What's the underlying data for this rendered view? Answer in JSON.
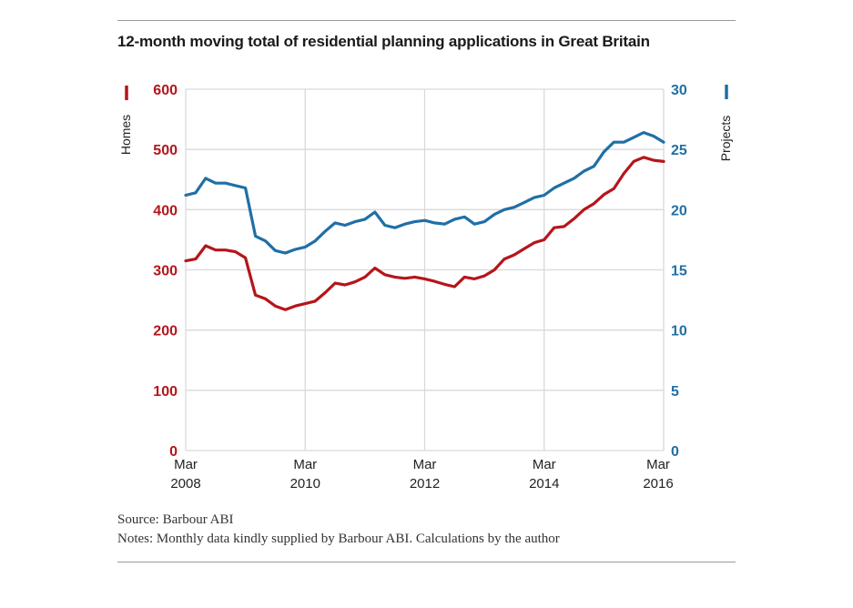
{
  "chart_data": {
    "type": "line",
    "title": "12-month moving total of residential planning applications in Great Britain",
    "x_range": [
      "2008-03",
      "2016-03"
    ],
    "x_ticks": [
      {
        "month": "Mar",
        "year": "2008",
        "date": "2008-03"
      },
      {
        "month": "Mar",
        "year": "2010",
        "date": "2010-03"
      },
      {
        "month": "Mar",
        "year": "2012",
        "date": "2012-03"
      },
      {
        "month": "Mar",
        "year": "2014",
        "date": "2014-03"
      },
      {
        "month": "Mar",
        "year": "2016",
        "date": "2016-03"
      }
    ],
    "y_left": {
      "label": "Homes",
      "ylim": [
        0,
        600
      ],
      "ticks": [
        "0",
        "100",
        "200",
        "300",
        "400",
        "500",
        "600"
      ]
    },
    "y_right": {
      "label": "Projects",
      "ylim": [
        0,
        30
      ],
      "ticks": [
        "0",
        "5",
        "10",
        "15",
        "20",
        "25",
        "30"
      ]
    },
    "grid": true,
    "legend": "axis-markers",
    "series": [
      {
        "name": "Homes",
        "axis": "left",
        "color": "#b5151b",
        "points": [
          [
            "2008-03",
            315
          ],
          [
            "2008-05",
            318
          ],
          [
            "2008-07",
            340
          ],
          [
            "2008-09",
            333
          ],
          [
            "2008-11",
            333
          ],
          [
            "2009-01",
            330
          ],
          [
            "2009-03",
            320
          ],
          [
            "2009-05",
            258
          ],
          [
            "2009-07",
            252
          ],
          [
            "2009-09",
            240
          ],
          [
            "2009-11",
            234
          ],
          [
            "2010-01",
            240
          ],
          [
            "2010-03",
            244
          ],
          [
            "2010-05",
            248
          ],
          [
            "2010-07",
            262
          ],
          [
            "2010-09",
            278
          ],
          [
            "2010-11",
            275
          ],
          [
            "2011-01",
            280
          ],
          [
            "2011-03",
            288
          ],
          [
            "2011-05",
            303
          ],
          [
            "2011-07",
            292
          ],
          [
            "2011-09",
            288
          ],
          [
            "2011-11",
            286
          ],
          [
            "2012-01",
            288
          ],
          [
            "2012-03",
            285
          ],
          [
            "2012-05",
            281
          ],
          [
            "2012-07",
            276
          ],
          [
            "2012-09",
            272
          ],
          [
            "2012-11",
            288
          ],
          [
            "2013-01",
            285
          ],
          [
            "2013-03",
            290
          ],
          [
            "2013-05",
            300
          ],
          [
            "2013-07",
            318
          ],
          [
            "2013-09",
            325
          ],
          [
            "2013-11",
            335
          ],
          [
            "2014-01",
            345
          ],
          [
            "2014-03",
            350
          ],
          [
            "2014-05",
            370
          ],
          [
            "2014-07",
            372
          ],
          [
            "2014-09",
            385
          ],
          [
            "2014-11",
            400
          ],
          [
            "2015-01",
            410
          ],
          [
            "2015-03",
            425
          ],
          [
            "2015-05",
            435
          ],
          [
            "2015-07",
            460
          ],
          [
            "2015-09",
            480
          ],
          [
            "2015-11",
            487
          ],
          [
            "2016-01",
            482
          ],
          [
            "2016-03",
            480
          ]
        ]
      },
      {
        "name": "Projects",
        "axis": "right",
        "color": "#1f6fa6",
        "points": [
          [
            "2008-03",
            21.2
          ],
          [
            "2008-05",
            21.4
          ],
          [
            "2008-07",
            22.6
          ],
          [
            "2008-09",
            22.2
          ],
          [
            "2008-11",
            22.2
          ],
          [
            "2009-01",
            22.0
          ],
          [
            "2009-03",
            21.8
          ],
          [
            "2009-05",
            17.8
          ],
          [
            "2009-07",
            17.4
          ],
          [
            "2009-09",
            16.6
          ],
          [
            "2009-11",
            16.4
          ],
          [
            "2010-01",
            16.7
          ],
          [
            "2010-03",
            16.9
          ],
          [
            "2010-05",
            17.4
          ],
          [
            "2010-07",
            18.2
          ],
          [
            "2010-09",
            18.9
          ],
          [
            "2010-11",
            18.7
          ],
          [
            "2011-01",
            19.0
          ],
          [
            "2011-03",
            19.2
          ],
          [
            "2011-05",
            19.8
          ],
          [
            "2011-07",
            18.7
          ],
          [
            "2011-09",
            18.5
          ],
          [
            "2011-11",
            18.8
          ],
          [
            "2012-01",
            19.0
          ],
          [
            "2012-03",
            19.1
          ],
          [
            "2012-05",
            18.9
          ],
          [
            "2012-07",
            18.8
          ],
          [
            "2012-09",
            19.2
          ],
          [
            "2012-11",
            19.4
          ],
          [
            "2013-01",
            18.8
          ],
          [
            "2013-03",
            19.0
          ],
          [
            "2013-05",
            19.6
          ],
          [
            "2013-07",
            20.0
          ],
          [
            "2013-09",
            20.2
          ],
          [
            "2013-11",
            20.6
          ],
          [
            "2014-01",
            21.0
          ],
          [
            "2014-03",
            21.2
          ],
          [
            "2014-05",
            21.8
          ],
          [
            "2014-07",
            22.2
          ],
          [
            "2014-09",
            22.6
          ],
          [
            "2014-11",
            23.2
          ],
          [
            "2015-01",
            23.6
          ],
          [
            "2015-03",
            24.8
          ],
          [
            "2015-05",
            25.6
          ],
          [
            "2015-07",
            25.6
          ],
          [
            "2015-09",
            26.0
          ],
          [
            "2015-11",
            26.4
          ],
          [
            "2016-01",
            26.1
          ],
          [
            "2016-03",
            25.6
          ]
        ]
      }
    ]
  },
  "footer": {
    "source": "Source: Barbour ABI",
    "notes": "Notes: Monthly data kindly supplied by Barbour ABI. Calculations  by the author"
  }
}
